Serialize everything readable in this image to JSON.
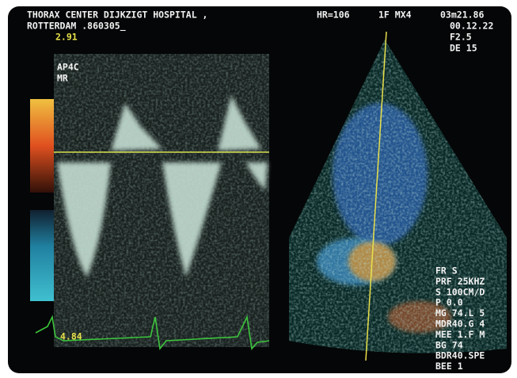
{
  "header": {
    "line1": "THORAX CENTER DIJKZIGT HOSPITAL ,",
    "heart_rate": "HR=106",
    "mode": "1F MX4",
    "time": "03m21.86",
    "line2": "ROTTERDAM .860305_",
    "clock": "00.12.22"
  },
  "doppler": {
    "scale_top": "2.91",
    "view": "AP4C",
    "finding": "MR",
    "scale_bottom": "4.84"
  },
  "settings": {
    "frequency": "F2.5",
    "depth": "DE 15",
    "parameters": [
      "FR S",
      "PRF 25KHZ",
      "S 100CM/D",
      "P 0.0",
      "MG 74.L 5",
      "MDR40.G 4",
      "MEE 1.F M",
      "BG 74",
      "BDR40.SPE",
      "BEE 1"
    ]
  }
}
